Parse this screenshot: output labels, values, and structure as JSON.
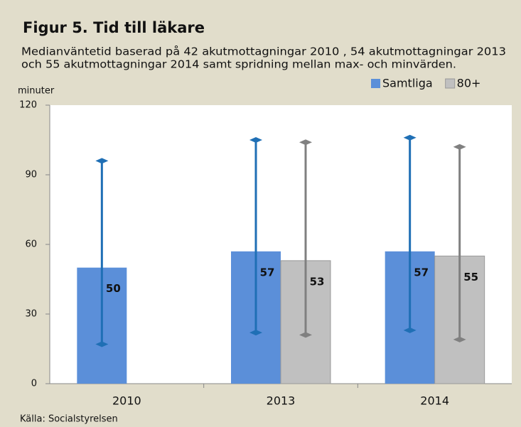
{
  "chart_data": {
    "type": "bar",
    "title": "Figur 5. Tid till läkare",
    "subtitle": [
      "Medianväntetid baserad på 42 akutmottagningar 2010 , 54 akutmottagningar 2013",
      "och 55 akutmottagningar 2014 samt spridning mellan max- och minvärden."
    ],
    "y_label": "minuter",
    "source": "Källa: Socialstyrelsen",
    "categories": [
      "2010",
      "2013",
      "2014"
    ],
    "series": [
      {
        "name": "Samtliga",
        "color": "#5b8fd9",
        "error_color": "#1f6fb5",
        "values": [
          50,
          57,
          57
        ],
        "max": [
          96,
          105,
          106
        ],
        "min": [
          17,
          22,
          23
        ]
      },
      {
        "name": "80+",
        "color": "#c0c0c0",
        "error_color": "#808080",
        "values": [
          null,
          53,
          55
        ],
        "max": [
          null,
          104,
          102
        ],
        "min": [
          null,
          21,
          19
        ]
      }
    ],
    "ylim": [
      0,
      120
    ],
    "yticks": [
      0,
      30,
      60,
      90,
      120
    ],
    "grid": false,
    "legend": "top-right"
  }
}
